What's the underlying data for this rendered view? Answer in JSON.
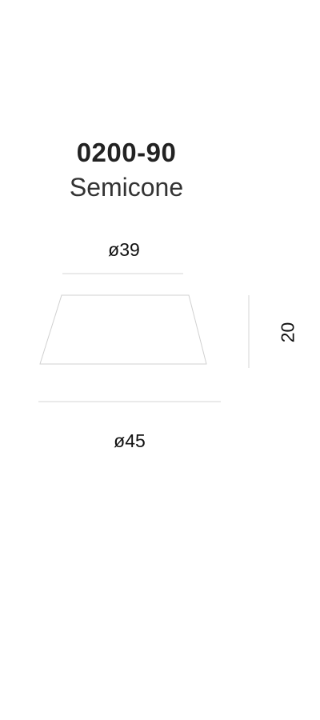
{
  "product": {
    "code": "0200-90",
    "name": "Semicone"
  },
  "dimensions": {
    "top_diameter": "ø39",
    "bottom_diameter": "ø45",
    "height": "20"
  },
  "colors": {
    "text": "#222222",
    "line": "#d0d0d0"
  }
}
